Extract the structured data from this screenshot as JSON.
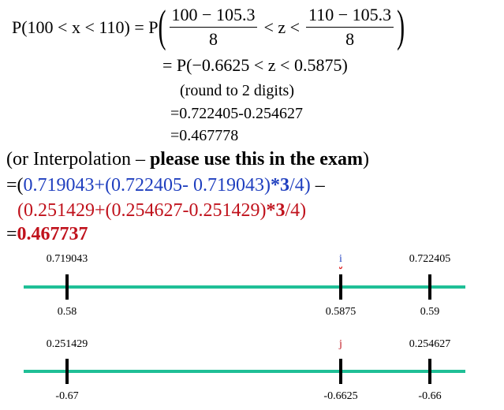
{
  "formula": {
    "lhs": "P(100 < x < 110) = P",
    "open_paren": "(",
    "frac1": {
      "num": "100 − 105.3",
      "den": "8"
    },
    "middle": "< z <",
    "frac2": {
      "num": "110 − 105.3",
      "den": "8"
    },
    "close_paren": ")"
  },
  "step2": "= P(−0.6625 < z < 0.5875)",
  "round_note": "(round to 2 digits)",
  "difference": "=0.722405-0.254627",
  "result": "=0.467778",
  "interpolation": {
    "intro": "(or Interpolation – ",
    "bold": "please use this in the exam",
    "close": ")",
    "line1": {
      "open": "=(",
      "expr": "0.719043+(0.722405- 0.719043)",
      "bold": "*3",
      "rest": "/4)",
      "dash": " –"
    },
    "line2": {
      "expr": "(0.251429+(0.254627-0.251429)",
      "bold": "*3",
      "rest": "/4)"
    },
    "line3": {
      "eq": "=",
      "value": "0.467737"
    }
  },
  "number_lines": [
    {
      "top_labels": [
        "0.719043",
        "i",
        "0.722405"
      ],
      "bottom_labels": [
        "0.58",
        "0.5875",
        "0.59"
      ]
    },
    {
      "top_labels": [
        "0.251429",
        "j",
        "0.254627"
      ],
      "bottom_labels": [
        "-0.67",
        "-0.6625",
        "-0.66"
      ]
    }
  ]
}
